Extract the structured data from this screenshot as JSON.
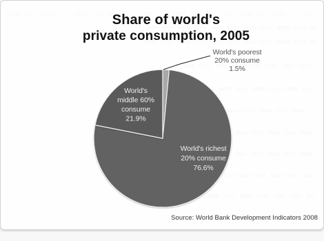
{
  "chart_data": {
    "type": "pie",
    "title": "Share of world's private consumption, 2005",
    "title_lines": [
      "Share of world's",
      "private consumption, 2005"
    ],
    "slices": [
      {
        "label_lines": [
          "World's poorest",
          "20% consume",
          "1.5%"
        ],
        "value": 1.5,
        "color": "#a9a9a9"
      },
      {
        "label_lines": [
          "World's richest",
          "20% consume",
          "76.6%"
        ],
        "value": 76.6,
        "color": "#626262"
      },
      {
        "label_lines": [
          "World's",
          "middle 60%",
          "consume",
          "21.9%"
        ],
        "value": 21.9,
        "color": "#5a5a5a"
      }
    ],
    "source": "Source: World Bank Development Indicators 2008"
  }
}
